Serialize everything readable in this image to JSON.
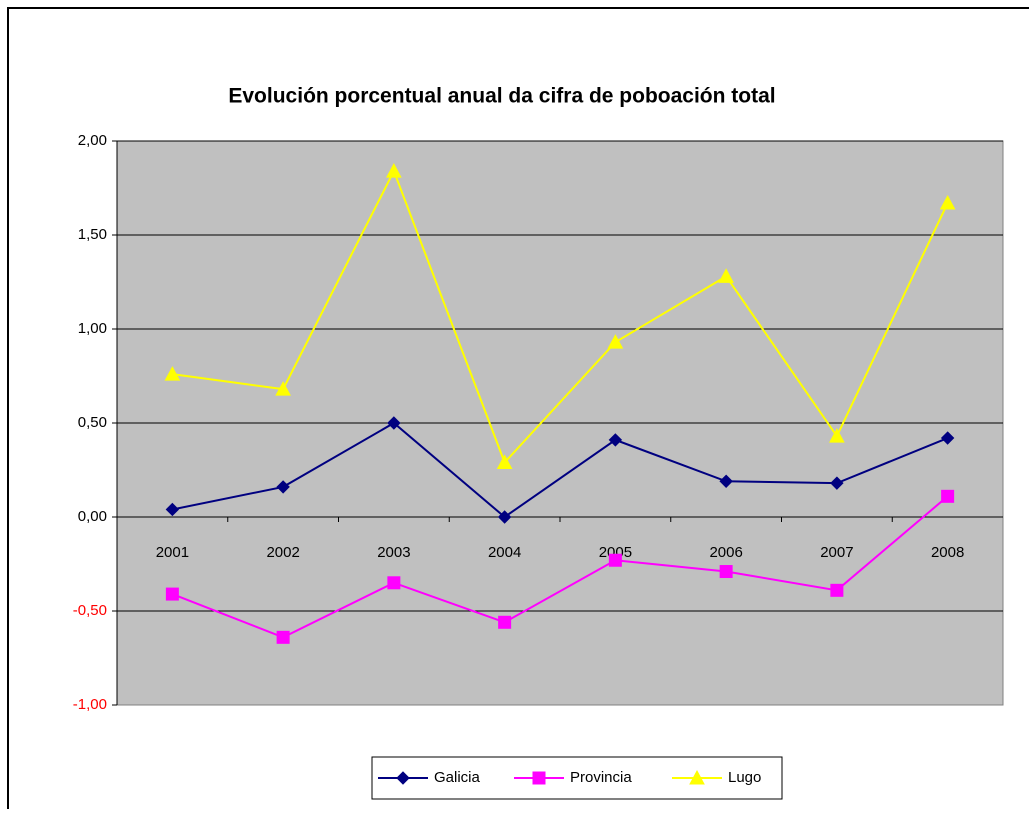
{
  "chart_data": {
    "type": "line",
    "title": "Evolución porcentual anual da cifra de poboación total",
    "categories": [
      "2001",
      "2002",
      "2003",
      "2004",
      "2005",
      "2006",
      "2007",
      "2008"
    ],
    "series": [
      {
        "name": "Galicia",
        "color": "#000080",
        "marker": "diamond",
        "values": [
          0.04,
          0.16,
          0.5,
          0.0,
          0.41,
          0.19,
          0.18,
          0.42
        ]
      },
      {
        "name": "Provincia",
        "color": "#ff00ff",
        "marker": "square",
        "values": [
          -0.41,
          -0.64,
          -0.35,
          -0.56,
          -0.23,
          -0.29,
          -0.39,
          0.11
        ]
      },
      {
        "name": "Lugo",
        "color": "#ffff00",
        "marker": "triangle",
        "values": [
          0.76,
          0.68,
          1.84,
          0.29,
          0.93,
          1.28,
          0.43,
          1.67
        ]
      }
    ],
    "ylim": [
      -1,
      2
    ],
    "yticks": [
      {
        "value": -1,
        "label": "-1,00"
      },
      {
        "value": -0.5,
        "label": "-0,50"
      },
      {
        "value": 0,
        "label": "0,00"
      },
      {
        "value": 0.5,
        "label": "0,50"
      },
      {
        "value": 1,
        "label": "1,00"
      },
      {
        "value": 1.5,
        "label": "1,50"
      },
      {
        "value": 2,
        "label": "2,00"
      }
    ],
    "grid": true,
    "negative_tick_color": "#ff0000",
    "legend": "bottom"
  }
}
